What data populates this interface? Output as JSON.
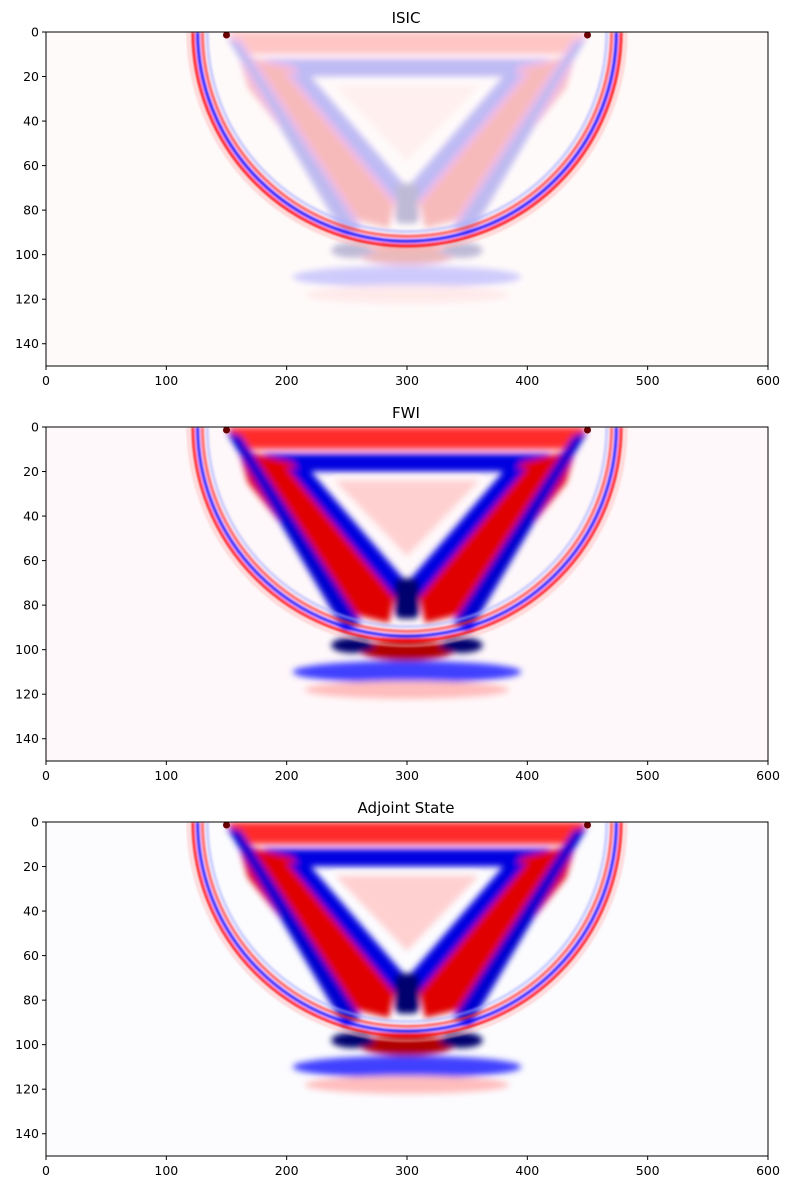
{
  "chart_data": [
    {
      "type": "heatmap",
      "title": "ISIC",
      "colormap": "seismic",
      "xlim": [
        0,
        600
      ],
      "ylim": [
        150,
        0
      ],
      "xticks": [
        0,
        100,
        200,
        300,
        400,
        500,
        600
      ],
      "yticks": [
        0,
        20,
        40,
        60,
        80,
        100,
        120,
        140
      ],
      "features": {
        "source_x": [
          150,
          450
        ],
        "arc_center_x": 300,
        "arc_radius": 182,
        "arc_color": "#ff0000",
        "inner_arc_color": "#0000ff",
        "interior_contrast": 0.25,
        "reflector_depth": 100,
        "background": "#fffafa"
      }
    },
    {
      "type": "heatmap",
      "title": "FWI",
      "colormap": "seismic",
      "xlim": [
        0,
        600
      ],
      "ylim": [
        150,
        0
      ],
      "xticks": [
        0,
        100,
        200,
        300,
        400,
        500,
        600
      ],
      "yticks": [
        0,
        20,
        40,
        60,
        80,
        100,
        120,
        140
      ],
      "features": {
        "source_x": [
          150,
          450
        ],
        "arc_center_x": 300,
        "arc_radius": 182,
        "interior_contrast": 1.0,
        "reflector_depth": 100,
        "background": "#fff8fa"
      }
    },
    {
      "type": "heatmap",
      "title": "Adjoint State",
      "colormap": "seismic",
      "xlim": [
        0,
        600
      ],
      "ylim": [
        150,
        0
      ],
      "xticks": [
        0,
        100,
        200,
        300,
        400,
        500,
        600
      ],
      "yticks": [
        0,
        20,
        40,
        60,
        80,
        100,
        120,
        140
      ],
      "features": {
        "source_x": [
          150,
          450
        ],
        "arc_center_x": 300,
        "arc_radius": 182,
        "interior_contrast": 1.0,
        "reflector_depth": 100,
        "background": "#fcfcff"
      }
    }
  ]
}
